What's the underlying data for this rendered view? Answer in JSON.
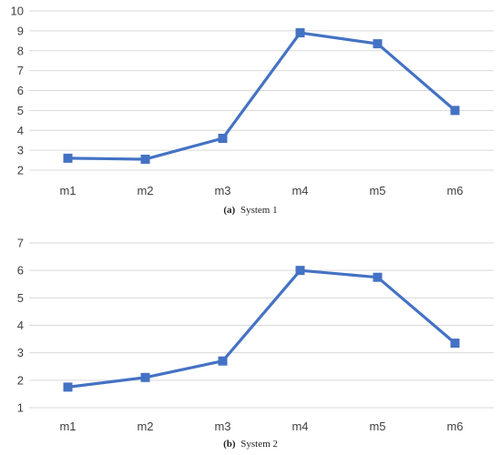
{
  "chart_data": [
    {
      "type": "line",
      "caption_label": "(a)",
      "caption_text": "System 1",
      "categories": [
        "m1",
        "m2",
        "m3",
        "m4",
        "m5",
        "m6"
      ],
      "series": [
        {
          "values": [
            2.6,
            2.55,
            3.6,
            8.9,
            8.35,
            5.0
          ]
        }
      ],
      "ylim": [
        2,
        10
      ],
      "yticks": [
        2,
        3,
        4,
        5,
        6,
        7,
        8,
        9,
        10
      ],
      "grid": true,
      "legend": "none",
      "marker": "square",
      "color": "#4472C4"
    },
    {
      "type": "line",
      "caption_label": "(b)",
      "caption_text": "System 2",
      "categories": [
        "m1",
        "m2",
        "m3",
        "m4",
        "m5",
        "m6"
      ],
      "series": [
        {
          "values": [
            1.75,
            2.1,
            2.7,
            6.0,
            5.75,
            3.35
          ]
        }
      ],
      "ylim": [
        1,
        7
      ],
      "yticks": [
        1,
        2,
        3,
        4,
        5,
        6,
        7
      ],
      "grid": true,
      "legend": "none",
      "marker": "square",
      "color": "#4472C4"
    }
  ]
}
